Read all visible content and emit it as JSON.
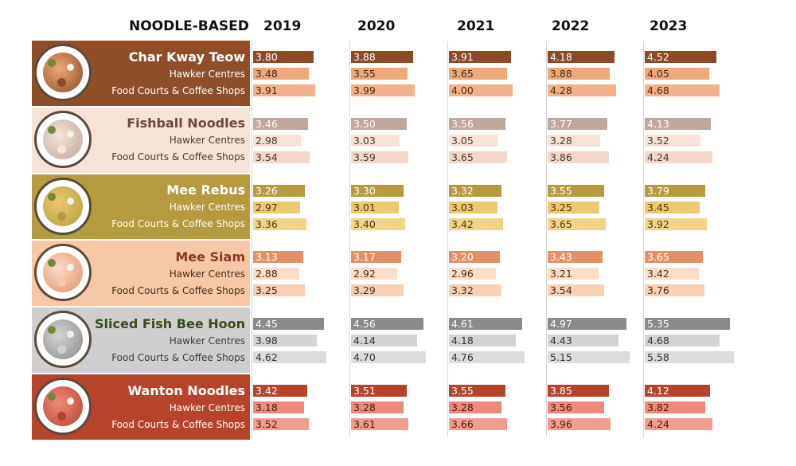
{
  "header": {
    "group_label": "NOODLE-BASED"
  },
  "chart_data": {
    "type": "bar",
    "orientation": "horizontal",
    "title": "NOODLE-BASED",
    "years": [
      "2019",
      "2020",
      "2021",
      "2022",
      "2023"
    ],
    "row_labels": [
      "",
      "Hawker Centres",
      "Food Courts & Coffee Shops"
    ],
    "dishes": [
      {
        "name": "Char Kway Teow",
        "overall": [
          "3.80",
          "3.88",
          "3.91",
          "4.18",
          "4.52"
        ],
        "hawker_centres": [
          "3.48",
          "3.55",
          "3.65",
          "3.88",
          "4.05"
        ],
        "food_courts_coffee_shops": [
          "3.91",
          "3.99",
          "4.00",
          "4.28",
          "4.68"
        ],
        "colors": {
          "band": "#8f4e27",
          "name": "#ffffff",
          "sub": "#ffffff",
          "bar_overall": "#8e4a24",
          "bar_hawker": "#efa977",
          "bar_food": "#f4b28a",
          "text_overall": "#ffffff",
          "text_hawker": "#4a2a12",
          "text_food": "#4a2a12"
        },
        "icon": "char-kway-teow-plate-icon"
      },
      {
        "name": "Fishball Noodles",
        "overall": [
          "3.46",
          "3.50",
          "3.56",
          "3.77",
          "4.13"
        ],
        "hawker_centres": [
          "2.98",
          "3.03",
          "3.05",
          "3.28",
          "3.52"
        ],
        "food_courts_coffee_shops": [
          "3.54",
          "3.59",
          "3.65",
          "3.86",
          "4.24"
        ],
        "colors": {
          "band": "#f6e3d8",
          "name": "#6b4a3a",
          "sub": "#4a3a30",
          "bar_overall": "#bfa79c",
          "bar_hawker": "#f6e3d8",
          "bar_food": "#f2d8cb",
          "text_overall": "#ffffff",
          "text_hawker": "#4a3a30",
          "text_food": "#4a3a30"
        },
        "icon": "fishball-noodles-plate-icon"
      },
      {
        "name": "Mee Rebus",
        "overall": [
          "3.26",
          "3.30",
          "3.32",
          "3.55",
          "3.79"
        ],
        "hawker_centres": [
          "2.97",
          "3.01",
          "3.03",
          "3.25",
          "3.45"
        ],
        "food_courts_coffee_shops": [
          "3.36",
          "3.40",
          "3.42",
          "3.65",
          "3.92"
        ],
        "colors": {
          "band": "#b59a3f",
          "name": "#ffffff",
          "sub": "#ffffff",
          "bar_overall": "#b59a3f",
          "bar_hawker": "#ecc96e",
          "bar_food": "#f0d489",
          "text_overall": "#ffffff",
          "text_hawker": "#4a3a10",
          "text_food": "#4a3a10"
        },
        "icon": "mee-rebus-plate-icon"
      },
      {
        "name": "Mee Siam",
        "overall": [
          "3.13",
          "3.17",
          "3.20",
          "3.43",
          "3.65"
        ],
        "hawker_centres": [
          "2.88",
          "2.92",
          "2.96",
          "3.21",
          "3.42"
        ],
        "food_courts_coffee_shops": [
          "3.25",
          "3.29",
          "3.32",
          "3.54",
          "3.76"
        ],
        "colors": {
          "band": "#f7c7a7",
          "name": "#8a3a20",
          "sub": "#4a2a1a",
          "bar_overall": "#e49066",
          "bar_hawker": "#fbdcc7",
          "bar_food": "#f8d0b5",
          "text_overall": "#ffffff",
          "text_hawker": "#4a2a1a",
          "text_food": "#4a2a1a"
        },
        "icon": "mee-siam-plate-icon"
      },
      {
        "name": "Sliced Fish Bee Hoon",
        "overall": [
          "4.45",
          "4.56",
          "4.61",
          "4.97",
          "5.35"
        ],
        "hawker_centres": [
          "3.98",
          "4.14",
          "4.18",
          "4.43",
          "4.68"
        ],
        "food_courts_coffee_shops": [
          "4.62",
          "4.70",
          "4.76",
          "5.15",
          "5.58"
        ],
        "colors": {
          "band": "#cfcfcf",
          "name": "#3a4a1a",
          "sub": "#3a3a3a",
          "bar_overall": "#8a8a8a",
          "bar_hawker": "#d3d3d3",
          "bar_food": "#dcdcdc",
          "text_overall": "#ffffff",
          "text_hawker": "#333333",
          "text_food": "#333333"
        },
        "icon": "sliced-fish-bee-hoon-plate-icon"
      },
      {
        "name": "Wanton Noodles",
        "overall": [
          "3.42",
          "3.51",
          "3.55",
          "3.85",
          "4.12"
        ],
        "hawker_centres": [
          "3.18",
          "3.28",
          "3.28",
          "3.56",
          "3.82"
        ],
        "food_courts_coffee_shops": [
          "3.52",
          "3.61",
          "3.66",
          "3.96",
          "4.24"
        ],
        "colors": {
          "band": "#b5442a",
          "name": "#ffffff",
          "sub": "#ffffff",
          "bar_overall": "#b5442a",
          "bar_hawker": "#ee8a78",
          "bar_food": "#f29e8c",
          "text_overall": "#ffffff",
          "text_hawker": "#4a1a10",
          "text_food": "#4a1a10"
        },
        "icon": "wanton-noodles-plate-icon"
      }
    ]
  }
}
